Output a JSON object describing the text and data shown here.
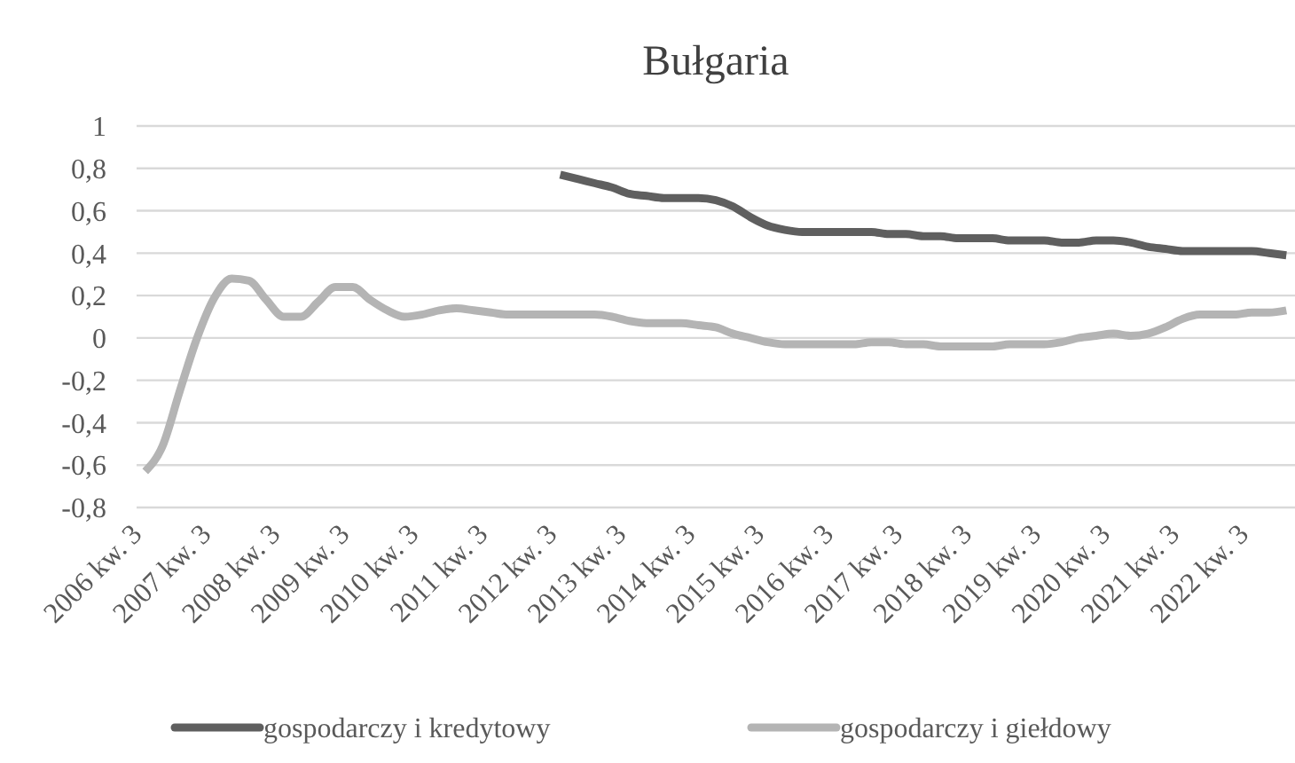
{
  "chart_data": {
    "type": "line",
    "title": "Bułgaria",
    "categories": [
      "2006 kw. 3",
      null,
      null,
      null,
      "2007 kw. 3",
      null,
      null,
      null,
      "2008 kw. 3",
      null,
      null,
      null,
      "2009 kw. 3",
      null,
      null,
      null,
      "2010 kw. 3",
      null,
      null,
      null,
      "2011 kw. 3",
      null,
      null,
      null,
      "2012 kw. 3",
      null,
      null,
      null,
      "2013 kw. 3",
      null,
      null,
      null,
      "2014 kw. 3",
      null,
      null,
      null,
      "2015 kw. 3",
      null,
      null,
      null,
      "2016 kw. 3",
      null,
      null,
      null,
      "2017 kw. 3",
      null,
      null,
      null,
      "2018 kw. 3",
      null,
      null,
      null,
      "2019 kw. 3",
      null,
      null,
      null,
      "2020 kw. 3",
      null,
      null,
      null,
      "2021 kw. 3",
      null,
      null,
      null,
      "2022 kw. 3",
      null,
      null
    ],
    "series": [
      {
        "name": "gospodarczy i kredytowy",
        "color": "#5f5f5f",
        "values": [
          null,
          null,
          null,
          null,
          null,
          null,
          null,
          null,
          null,
          null,
          null,
          null,
          null,
          null,
          null,
          null,
          null,
          null,
          null,
          null,
          null,
          null,
          null,
          null,
          0.77,
          0.75,
          0.73,
          0.71,
          0.68,
          0.67,
          0.66,
          0.66,
          0.66,
          0.65,
          0.62,
          0.57,
          0.53,
          0.51,
          0.5,
          0.5,
          0.5,
          0.5,
          0.5,
          0.49,
          0.49,
          0.48,
          0.48,
          0.47,
          0.47,
          0.47,
          0.46,
          0.46,
          0.46,
          0.45,
          0.45,
          0.46,
          0.46,
          0.45,
          0.43,
          0.42,
          0.41,
          0.41,
          0.41,
          0.41,
          0.41,
          0.4,
          0.39
        ]
      },
      {
        "name": "gospodarczy i giełdowy",
        "color": "#b4b4b4",
        "values": [
          -0.63,
          -0.51,
          -0.25,
          0.0,
          0.19,
          0.28,
          0.27,
          0.18,
          0.1,
          0.1,
          0.17,
          0.24,
          0.24,
          0.18,
          0.13,
          0.1,
          0.11,
          0.13,
          0.14,
          0.13,
          0.12,
          0.11,
          0.11,
          0.11,
          0.11,
          0.11,
          0.11,
          0.1,
          0.08,
          0.07,
          0.07,
          0.07,
          0.06,
          0.05,
          0.02,
          0.0,
          -0.02,
          -0.03,
          -0.03,
          -0.03,
          -0.03,
          -0.03,
          -0.02,
          -0.02,
          -0.03,
          -0.03,
          -0.04,
          -0.04,
          -0.04,
          -0.04,
          -0.03,
          -0.03,
          -0.03,
          -0.02,
          0.0,
          0.01,
          0.02,
          0.01,
          0.02,
          0.05,
          0.09,
          0.11,
          0.11,
          0.11,
          0.12,
          0.12,
          0.13
        ]
      }
    ],
    "ylim": [
      -0.8,
      1
    ],
    "yticks": [
      {
        "value": -0.8,
        "label": "-0,8"
      },
      {
        "value": -0.6,
        "label": "-0,6"
      },
      {
        "value": -0.4,
        "label": "-0,4"
      },
      {
        "value": -0.2,
        "label": "-0,2"
      },
      {
        "value": 0,
        "label": "0"
      },
      {
        "value": 0.2,
        "label": "0,2"
      },
      {
        "value": 0.4,
        "label": "0,4"
      },
      {
        "value": 0.6,
        "label": "0,6"
      },
      {
        "value": 0.8,
        "label": "0,8"
      },
      {
        "value": 1,
        "label": "1"
      }
    ],
    "grid": "y",
    "legend": "bottom",
    "marker": "none",
    "line_style": "solid"
  }
}
